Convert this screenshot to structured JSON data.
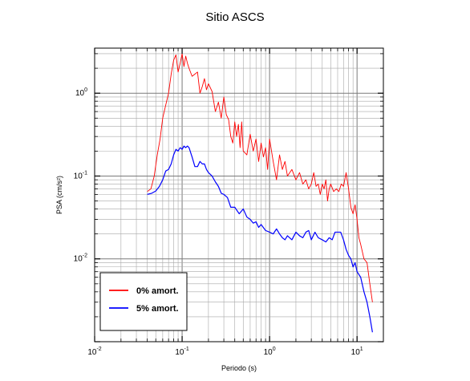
{
  "chart_data": {
    "type": "line",
    "title": "Sitio ASCS",
    "xlabel": "Periodo (s)",
    "ylabel": "PSA (cm/s²)",
    "x_scale": "log",
    "y_scale": "log",
    "xlim": [
      0.01,
      20
    ],
    "ylim": [
      0.001,
      3.5
    ],
    "grid": true,
    "legend_position": "bottom-left",
    "x_ticks": [
      {
        "value": 0.01,
        "base": "10",
        "exp": "-2"
      },
      {
        "value": 0.1,
        "base": "10",
        "exp": "-1"
      },
      {
        "value": 1,
        "base": "10",
        "exp": "0"
      },
      {
        "value": 10,
        "base": "10",
        "exp": "1"
      }
    ],
    "y_ticks": [
      {
        "value": 0.01,
        "base": "10",
        "exp": "-2"
      },
      {
        "value": 0.1,
        "base": "10",
        "exp": "-1"
      },
      {
        "value": 1,
        "base": "10",
        "exp": "0"
      }
    ],
    "series": [
      {
        "name": "0% amort.",
        "color": "#ff0000",
        "x": [
          0.04,
          0.044,
          0.048,
          0.052,
          0.056,
          0.06,
          0.065,
          0.07,
          0.075,
          0.08,
          0.085,
          0.09,
          0.095,
          0.1,
          0.105,
          0.11,
          0.115,
          0.12,
          0.13,
          0.14,
          0.15,
          0.16,
          0.17,
          0.18,
          0.19,
          0.2,
          0.22,
          0.24,
          0.26,
          0.28,
          0.3,
          0.32,
          0.34,
          0.36,
          0.38,
          0.4,
          0.42,
          0.44,
          0.46,
          0.48,
          0.5,
          0.55,
          0.6,
          0.65,
          0.7,
          0.75,
          0.8,
          0.85,
          0.9,
          0.95,
          1.0,
          1.1,
          1.2,
          1.3,
          1.4,
          1.5,
          1.6,
          1.8,
          2.0,
          2.2,
          2.4,
          2.6,
          2.8,
          3.0,
          3.2,
          3.4,
          3.6,
          3.8,
          4.0,
          4.2,
          4.4,
          4.6,
          4.8,
          5.0,
          5.4,
          5.8,
          6.2,
          6.6,
          7.0,
          7.5,
          8.0,
          8.5,
          9.0,
          9.5,
          10.0,
          10.5,
          11.0,
          12.0,
          13.0,
          14.0,
          15.0
        ],
        "values": [
          0.065,
          0.07,
          0.1,
          0.18,
          0.28,
          0.5,
          0.72,
          1.0,
          1.7,
          2.5,
          2.9,
          1.8,
          2.3,
          3.0,
          2.1,
          2.8,
          2.3,
          2.0,
          1.6,
          1.7,
          1.8,
          1.0,
          1.2,
          1.5,
          1.1,
          1.3,
          1.05,
          0.6,
          0.78,
          0.5,
          0.9,
          0.55,
          0.48,
          0.3,
          0.25,
          0.45,
          0.3,
          0.42,
          0.22,
          0.45,
          0.2,
          0.18,
          0.32,
          0.2,
          0.28,
          0.15,
          0.25,
          0.17,
          0.22,
          0.12,
          0.28,
          0.15,
          0.09,
          0.18,
          0.12,
          0.15,
          0.1,
          0.12,
          0.09,
          0.11,
          0.08,
          0.09,
          0.07,
          0.08,
          0.11,
          0.075,
          0.08,
          0.06,
          0.08,
          0.07,
          0.09,
          0.05,
          0.07,
          0.08,
          0.065,
          0.07,
          0.065,
          0.08,
          0.075,
          0.11,
          0.07,
          0.042,
          0.035,
          0.045,
          0.03,
          0.018,
          0.015,
          0.01,
          0.009,
          0.005,
          0.003
        ]
      },
      {
        "name": "5% amort.",
        "color": "#0000ff",
        "x": [
          0.04,
          0.045,
          0.05,
          0.055,
          0.06,
          0.065,
          0.07,
          0.075,
          0.08,
          0.085,
          0.09,
          0.095,
          0.1,
          0.105,
          0.11,
          0.115,
          0.12,
          0.13,
          0.14,
          0.15,
          0.16,
          0.17,
          0.18,
          0.19,
          0.2,
          0.22,
          0.24,
          0.26,
          0.28,
          0.3,
          0.33,
          0.36,
          0.4,
          0.45,
          0.5,
          0.55,
          0.6,
          0.65,
          0.7,
          0.75,
          0.8,
          0.9,
          1.0,
          1.1,
          1.2,
          1.3,
          1.4,
          1.5,
          1.6,
          1.8,
          2.0,
          2.2,
          2.4,
          2.6,
          2.8,
          3.0,
          3.3,
          3.6,
          4.0,
          4.4,
          4.8,
          5.2,
          5.6,
          6.0,
          6.5,
          7.0,
          7.5,
          8.0,
          8.5,
          9.0,
          9.5,
          10.0,
          11.0,
          12.0,
          13.0,
          14.0,
          15.0
        ],
        "values": [
          0.06,
          0.062,
          0.066,
          0.075,
          0.09,
          0.115,
          0.12,
          0.14,
          0.18,
          0.21,
          0.2,
          0.22,
          0.21,
          0.23,
          0.22,
          0.23,
          0.22,
          0.17,
          0.13,
          0.13,
          0.15,
          0.14,
          0.14,
          0.12,
          0.11,
          0.1,
          0.085,
          0.075,
          0.062,
          0.06,
          0.055,
          0.042,
          0.042,
          0.035,
          0.04,
          0.032,
          0.03,
          0.027,
          0.028,
          0.024,
          0.026,
          0.022,
          0.021,
          0.02,
          0.023,
          0.02,
          0.018,
          0.017,
          0.019,
          0.017,
          0.021,
          0.019,
          0.018,
          0.021,
          0.022,
          0.017,
          0.021,
          0.018,
          0.017,
          0.016,
          0.018,
          0.017,
          0.021,
          0.021,
          0.021,
          0.017,
          0.013,
          0.011,
          0.01,
          0.008,
          0.009,
          0.007,
          0.006,
          0.004,
          0.003,
          0.002,
          0.0013
        ]
      }
    ]
  }
}
